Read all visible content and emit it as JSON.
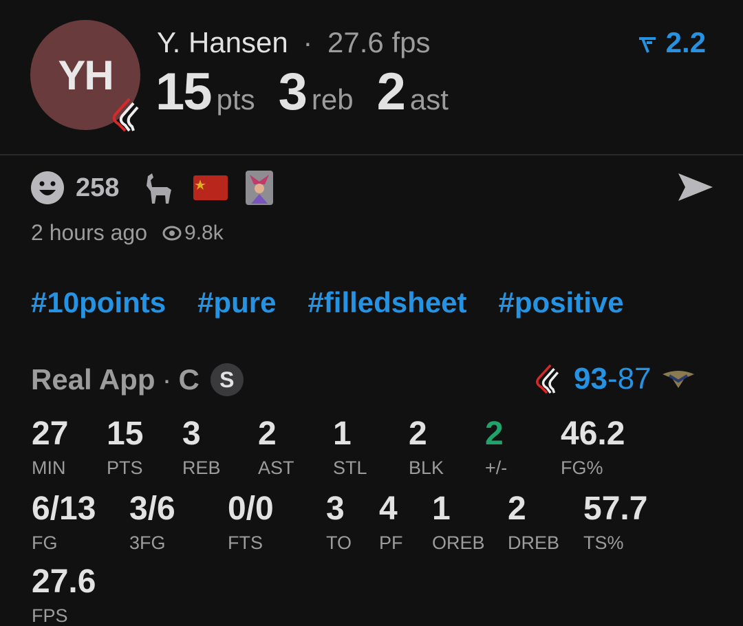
{
  "colors": {
    "background": "#111112",
    "accent": "#2592e2",
    "positive": "#1fa36b",
    "avatar": "#6a3b3d"
  },
  "header": {
    "initials": "YH",
    "name": "Y. Hansen",
    "separator": "·",
    "fps": "27.6 fps",
    "rating": "2.2",
    "rating_icon": "trend-arrow-icon",
    "pts": "15",
    "pts_label": "pts",
    "reb": "3",
    "reb_label": "reb",
    "ast": "2",
    "ast_label": "ast",
    "team_icon": "trail-blazers-logo-icon"
  },
  "reactions": {
    "count": "258",
    "icons": [
      "smiley-icon",
      "goat-icon",
      "china-flag-icon",
      "jester-icon"
    ],
    "share_icon": "send-icon"
  },
  "meta": {
    "time": "2 hours ago",
    "views": "9.8k"
  },
  "tags": [
    "#10points",
    "#pure",
    "#filledsheet",
    "#positive"
  ],
  "game": {
    "source": "Real App",
    "separator": "·",
    "position": "C",
    "badge": "S",
    "home_score": "93",
    "dash": "-",
    "away_score": "87"
  },
  "stats_row1": [
    {
      "v": "27",
      "l": "MIN"
    },
    {
      "v": "15",
      "l": "PTS"
    },
    {
      "v": "3",
      "l": "REB"
    },
    {
      "v": "2",
      "l": "AST"
    },
    {
      "v": "1",
      "l": "STL"
    },
    {
      "v": "2",
      "l": "BLK"
    },
    {
      "v": "2",
      "l": "+/-"
    },
    {
      "v": "46.2",
      "l": "FG%"
    }
  ],
  "stats_row2": [
    {
      "v": "6/13",
      "l": "FG"
    },
    {
      "v": "3/6",
      "l": "3FG"
    },
    {
      "v": "0/0",
      "l": "FTS"
    },
    {
      "v": "3",
      "l": "TO"
    },
    {
      "v": "4",
      "l": "PF"
    },
    {
      "v": "1",
      "l": "OREB"
    },
    {
      "v": "2",
      "l": "DREB"
    },
    {
      "v": "57.7",
      "l": "TS%"
    }
  ],
  "stats_row3": [
    {
      "v": "27.6",
      "l": "FPS"
    }
  ]
}
